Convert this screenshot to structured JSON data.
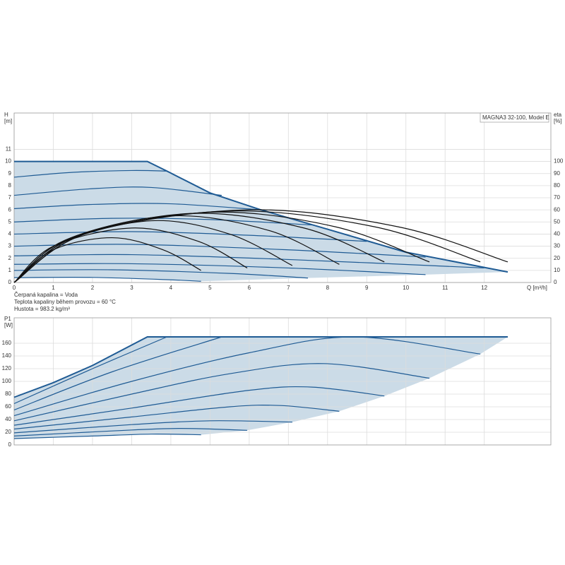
{
  "chart_data": [
    {
      "type": "line",
      "title": "MAGNA3 32-100, Model E",
      "ylabel": "H",
      "yunit": "[m]",
      "y2label": "eta",
      "y2unit": "[%]",
      "xlabel": "Q [m³/h]",
      "notes": [
        "Čerpaná kapalina = Voda",
        "Teplota kapaliny během provozu = 60 °C",
        "Hustota = 983.2 kg/m³"
      ],
      "xlim": [
        0,
        13.7
      ],
      "xticks": [
        0,
        1,
        2,
        3,
        4,
        5,
        6,
        7,
        8,
        9,
        10,
        11,
        12
      ],
      "show_xtick_labels": true,
      "ylim": [
        0,
        14
      ],
      "yticks": [
        0,
        1,
        2,
        3,
        4,
        5,
        6,
        7,
        8,
        9,
        10,
        11
      ],
      "y2lim": [
        0,
        140
      ],
      "y2ticks": [
        0,
        10,
        20,
        30,
        40,
        50,
        60,
        70,
        80,
        90,
        100
      ],
      "color": "#1f5b94",
      "eta_color": "#111111",
      "fill": "#cbdbe7",
      "grid": true,
      "envelope": {
        "x": [
          0,
          3.4,
          3.9,
          5,
          6.3,
          8,
          10,
          12.6
        ],
        "values": [
          10,
          10,
          9.2,
          7.4,
          6.0,
          4.4,
          2.5,
          0.87
        ]
      },
      "series": [
        {
          "x": [
            0,
            1.5,
            3,
            3.9
          ],
          "values": [
            8.7,
            9.1,
            9.25,
            9.2
          ]
        },
        {
          "x": [
            0,
            2,
            3.5,
            5.3
          ],
          "values": [
            7.2,
            7.75,
            7.85,
            7.2
          ]
        },
        {
          "x": [
            0,
            2,
            4,
            6.3
          ],
          "values": [
            6.1,
            6.45,
            6.5,
            6.0
          ]
        },
        {
          "x": [
            0,
            2.5,
            5,
            7.6
          ],
          "values": [
            5.0,
            5.3,
            5.2,
            4.75
          ]
        },
        {
          "x": [
            0,
            3,
            6,
            9
          ],
          "values": [
            4.0,
            4.2,
            3.9,
            3.4
          ]
        },
        {
          "x": [
            0,
            3,
            7,
            10.5
          ],
          "values": [
            3.0,
            3.15,
            2.7,
            2.1
          ]
        },
        {
          "x": [
            0,
            3,
            7,
            12
          ],
          "values": [
            2.2,
            2.3,
            1.9,
            1.2
          ]
        },
        {
          "x": [
            0,
            3,
            7,
            10.5
          ],
          "values": [
            1.5,
            1.55,
            1.2,
            0.65
          ]
        },
        {
          "x": [
            0,
            2.5,
            5.5,
            7.5
          ],
          "values": [
            1.0,
            1.05,
            0.75,
            0.37
          ]
        },
        {
          "x": [
            0,
            2,
            4,
            4.77
          ],
          "values": [
            0.4,
            0.42,
            0.22,
            0.1
          ]
        }
      ],
      "eta_series": [
        {
          "axis": "y2",
          "x": [
            0,
            1,
            2.5,
            3.8,
            4.77
          ],
          "values": [
            0,
            27,
            37,
            27,
            10
          ]
        },
        {
          "axis": "y2",
          "x": [
            0,
            1,
            3,
            4.7,
            5.95
          ],
          "values": [
            0,
            30,
            45,
            34,
            12
          ]
        },
        {
          "axis": "y2",
          "x": [
            0,
            1.2,
            3.5,
            5.5,
            7.1
          ],
          "values": [
            0,
            33,
            51,
            40,
            14
          ]
        },
        {
          "axis": "y2",
          "x": [
            0,
            1.3,
            4,
            6.5,
            8.3
          ],
          "values": [
            0,
            35,
            55,
            43,
            15
          ]
        },
        {
          "axis": "y2",
          "x": [
            0,
            1.5,
            4.5,
            7.4,
            9.45
          ],
          "values": [
            0,
            37,
            57,
            45,
            17
          ]
        },
        {
          "axis": "y2",
          "x": [
            0,
            1.6,
            5,
            8.2,
            10.6
          ],
          "values": [
            0,
            38,
            58,
            46,
            17
          ]
        },
        {
          "axis": "y2",
          "x": [
            0,
            1.8,
            5.5,
            9.2,
            11.9
          ],
          "values": [
            0,
            40,
            59,
            46,
            17
          ]
        },
        {
          "axis": "y2",
          "x": [
            0,
            1.9,
            6,
            9.8,
            12.6
          ],
          "values": [
            0,
            41,
            60,
            46,
            17
          ]
        }
      ]
    },
    {
      "type": "line",
      "ylabel": "P1",
      "yunit": "[W]",
      "xlim": [
        0,
        13.7
      ],
      "xticks": [
        0,
        1,
        2,
        3,
        4,
        5,
        6,
        7,
        8,
        9,
        10,
        11,
        12
      ],
      "show_xtick_labels": false,
      "ylim": [
        0,
        200
      ],
      "yticks": [
        0,
        20,
        40,
        60,
        80,
        100,
        120,
        140,
        160
      ],
      "color": "#1f5b94",
      "fill": "#cbdbe7",
      "grid": true,
      "envelope": {
        "x": [
          0,
          1,
          2,
          3.4,
          12.6
        ],
        "values": [
          75,
          98,
          125,
          170,
          170
        ]
      },
      "series": [
        {
          "x": [
            0,
            2,
            3.9
          ],
          "values": [
            65,
            120,
            170
          ]
        },
        {
          "x": [
            0,
            2.5,
            5.3
          ],
          "values": [
            55,
            115,
            170
          ]
        },
        {
          "x": [
            0,
            3,
            6,
            8.7,
            11.9
          ],
          "values": [
            46,
            100,
            145,
            170,
            143
          ]
        },
        {
          "x": [
            0,
            3,
            5.5,
            7.9,
            10.6
          ],
          "values": [
            38,
            80,
            112,
            128,
            105
          ]
        },
        {
          "x": [
            0,
            3,
            6,
            7.6,
            9.45
          ],
          "values": [
            31,
            58,
            86,
            91,
            77
          ]
        },
        {
          "x": [
            0,
            3,
            5.5,
            6.8,
            8.3
          ],
          "values": [
            25,
            44,
            60,
            62,
            53
          ]
        },
        {
          "x": [
            0,
            3,
            5,
            7.1
          ],
          "values": [
            19,
            32,
            38,
            36
          ]
        },
        {
          "x": [
            0,
            2.5,
            4.2,
            5.95
          ],
          "values": [
            14,
            22,
            26,
            23
          ]
        },
        {
          "x": [
            0,
            2,
            3.5,
            4.77
          ],
          "values": [
            10,
            14,
            17,
            16
          ]
        }
      ]
    }
  ]
}
